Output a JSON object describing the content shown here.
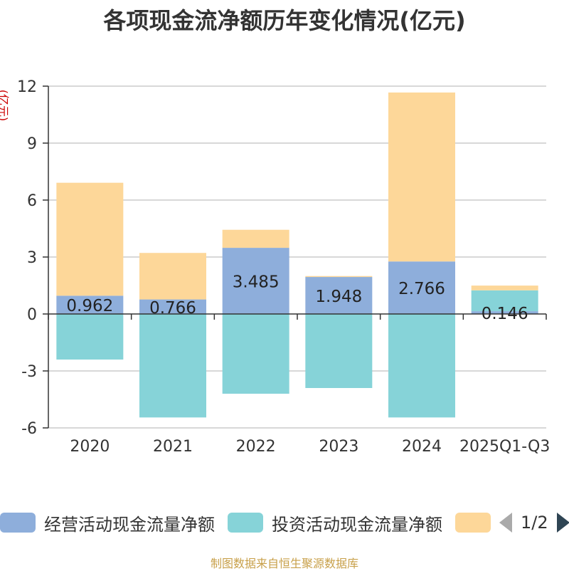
{
  "chart_data": {
    "type": "bar",
    "stacked": true,
    "title": "各项现金流净额历年变化情况(亿元)",
    "ylabel": "(亿元)",
    "xlabel": "",
    "ylim": [
      -6,
      12
    ],
    "yticks": [
      -6,
      -3,
      0,
      3,
      6,
      9,
      12
    ],
    "ytick_labels": [
      "-6",
      "-3",
      "0",
      "3",
      "6",
      "9",
      "12"
    ],
    "categories": [
      "2020",
      "2021",
      "2022",
      "2023",
      "2024",
      "2025Q1-Q3"
    ],
    "series": [
      {
        "name": "经营活动现金流量净额",
        "color": "#8eaedb",
        "values": [
          0.962,
          0.766,
          3.485,
          1.948,
          2.766,
          0.146
        ],
        "labels": [
          "0.962",
          "0.766",
          "3.485",
          "1.948",
          "2.766",
          "0.146"
        ]
      },
      {
        "name": "投资活动现金流量净额",
        "color": "#86d3d8",
        "values": [
          -2.4,
          -5.45,
          -4.2,
          -3.9,
          -5.45,
          1.1
        ]
      },
      {
        "name": "",
        "color": "#fdd799",
        "values": [
          5.95,
          2.45,
          0.95,
          0.05,
          8.9,
          0.25
        ]
      }
    ],
    "legend_position": "bottom"
  },
  "legend": {
    "page": "1/2"
  },
  "footer": {
    "source": "制图数据来自恒生聚源数据库"
  }
}
